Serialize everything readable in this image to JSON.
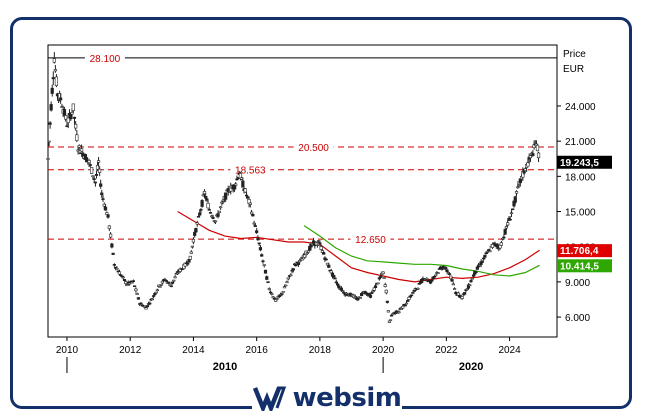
{
  "chart_data": {
    "type": "candlestick",
    "price_label": "Price",
    "currency_label": "EUR",
    "x_ticks": [
      "2010",
      "2012",
      "2014",
      "2016",
      "2018",
      "2020",
      "2022",
      "2024"
    ],
    "x_groups": [
      "2010",
      "2020"
    ],
    "y_ticks": [
      "24.000",
      "21.000",
      "18.000",
      "15.000",
      "12.000",
      "9.000",
      "6.000"
    ],
    "y_tick_values": [
      24000,
      21000,
      18000,
      15000,
      12000,
      9000,
      6000
    ],
    "ylim": [
      4300,
      29200
    ],
    "xlim": [
      2009.4,
      2025.5
    ],
    "levels": [
      {
        "value": 28100,
        "label": "28.100",
        "style": "solid",
        "color": "#000000",
        "label_x": 2011.2
      },
      {
        "value": 20500,
        "label": "20.500",
        "style": "dashed",
        "color": "#cc0000",
        "label_x": 2017.8
      },
      {
        "value": 18563,
        "label": "18.563",
        "style": "dashed",
        "color": "#cc0000",
        "label_x": 2015.8
      },
      {
        "value": 12650,
        "label": "12.650",
        "style": "dashed",
        "color": "#cc0000",
        "label_x": 2019.6
      }
    ],
    "price_badges": [
      {
        "value": 19243.5,
        "label": "19.243,5",
        "color": "#000000"
      },
      {
        "value": 11706.4,
        "label": "11.706,4",
        "color": "#e00000"
      },
      {
        "value": 10414.5,
        "label": "10.414,5",
        "color": "#2ea800"
      }
    ],
    "price_series": [
      [
        2009.4,
        19500
      ],
      [
        2009.5,
        24000
      ],
      [
        2009.6,
        28100
      ],
      [
        2009.7,
        25000
      ],
      [
        2009.8,
        24600
      ],
      [
        2010.0,
        22500
      ],
      [
        2010.2,
        23800
      ],
      [
        2010.35,
        20500
      ],
      [
        2010.5,
        20000
      ],
      [
        2010.7,
        19200
      ],
      [
        2010.9,
        17500
      ],
      [
        2011.0,
        19200
      ],
      [
        2011.1,
        16500
      ],
      [
        2011.3,
        14500
      ],
      [
        2011.5,
        10500
      ],
      [
        2011.7,
        9600
      ],
      [
        2011.9,
        8800
      ],
      [
        2012.1,
        9000
      ],
      [
        2012.3,
        7200
      ],
      [
        2012.5,
        6800
      ],
      [
        2012.7,
        7600
      ],
      [
        2012.9,
        8600
      ],
      [
        2013.1,
        9200
      ],
      [
        2013.3,
        8700
      ],
      [
        2013.5,
        9800
      ],
      [
        2013.7,
        10300
      ],
      [
        2013.9,
        11000
      ],
      [
        2014.0,
        12600
      ],
      [
        2014.2,
        14800
      ],
      [
        2014.35,
        16600
      ],
      [
        2014.5,
        15200
      ],
      [
        2014.7,
        14200
      ],
      [
        2014.9,
        15600
      ],
      [
        2015.1,
        16800
      ],
      [
        2015.3,
        17200
      ],
      [
        2015.45,
        18300
      ],
      [
        2015.6,
        17000
      ],
      [
        2015.8,
        15500
      ],
      [
        2016.0,
        13200
      ],
      [
        2016.2,
        10800
      ],
      [
        2016.4,
        8400
      ],
      [
        2016.6,
        7400
      ],
      [
        2016.8,
        8000
      ],
      [
        2017.0,
        9200
      ],
      [
        2017.2,
        10400
      ],
      [
        2017.4,
        10800
      ],
      [
        2017.6,
        11600
      ],
      [
        2017.8,
        12300
      ],
      [
        2018.0,
        12200
      ],
      [
        2018.2,
        10800
      ],
      [
        2018.4,
        9600
      ],
      [
        2018.6,
        8600
      ],
      [
        2018.8,
        8000
      ],
      [
        2019.0,
        7900
      ],
      [
        2019.2,
        7500
      ],
      [
        2019.4,
        8200
      ],
      [
        2019.6,
        7800
      ],
      [
        2019.8,
        8800
      ],
      [
        2020.0,
        9800
      ],
      [
        2020.1,
        8200
      ],
      [
        2020.2,
        5600
      ],
      [
        2020.3,
        6300
      ],
      [
        2020.5,
        6500
      ],
      [
        2020.7,
        7100
      ],
      [
        2020.9,
        7900
      ],
      [
        2021.1,
        8600
      ],
      [
        2021.3,
        9400
      ],
      [
        2021.5,
        9000
      ],
      [
        2021.7,
        9800
      ],
      [
        2021.9,
        10300
      ],
      [
        2022.1,
        9700
      ],
      [
        2022.3,
        8100
      ],
      [
        2022.5,
        7700
      ],
      [
        2022.7,
        8600
      ],
      [
        2022.9,
        9800
      ],
      [
        2023.1,
        10600
      ],
      [
        2023.3,
        11500
      ],
      [
        2023.5,
        12200
      ],
      [
        2023.7,
        12000
      ],
      [
        2023.9,
        13600
      ],
      [
        2024.1,
        15200
      ],
      [
        2024.3,
        17300
      ],
      [
        2024.5,
        18700
      ],
      [
        2024.7,
        19800
      ],
      [
        2024.85,
        20900
      ],
      [
        2024.95,
        19243
      ]
    ],
    "series": [
      {
        "color": "#cc0000",
        "points": [
          [
            2013.5,
            15000
          ],
          [
            2014.0,
            14200
          ],
          [
            2014.5,
            13400
          ],
          [
            2015.0,
            12900
          ],
          [
            2015.5,
            12700
          ],
          [
            2016.0,
            12800
          ],
          [
            2016.5,
            12600
          ],
          [
            2017.0,
            12400
          ],
          [
            2017.5,
            12400
          ],
          [
            2018.0,
            12200
          ],
          [
            2018.5,
            11200
          ],
          [
            2019.0,
            10200
          ],
          [
            2019.5,
            9800
          ],
          [
            2020.0,
            9500
          ],
          [
            2020.5,
            9200
          ],
          [
            2021.0,
            9000
          ],
          [
            2021.5,
            9200
          ],
          [
            2022.0,
            9400
          ],
          [
            2022.5,
            9300
          ],
          [
            2023.0,
            9400
          ],
          [
            2023.5,
            9700
          ],
          [
            2024.0,
            10200
          ],
          [
            2024.5,
            10900
          ],
          [
            2024.95,
            11706
          ]
        ]
      },
      {
        "color": "#2ea800",
        "points": [
          [
            2017.5,
            13800
          ],
          [
            2018.0,
            12900
          ],
          [
            2018.5,
            11900
          ],
          [
            2019.0,
            11200
          ],
          [
            2019.5,
            10800
          ],
          [
            2020.0,
            10700
          ],
          [
            2020.5,
            10600
          ],
          [
            2021.0,
            10500
          ],
          [
            2021.5,
            10500
          ],
          [
            2022.0,
            10400
          ],
          [
            2022.5,
            10100
          ],
          [
            2023.0,
            9900
          ],
          [
            2023.5,
            9600
          ],
          [
            2024.0,
            9500
          ],
          [
            2024.5,
            9800
          ],
          [
            2024.95,
            10414
          ]
        ]
      }
    ]
  },
  "brand": {
    "name": "websim"
  }
}
